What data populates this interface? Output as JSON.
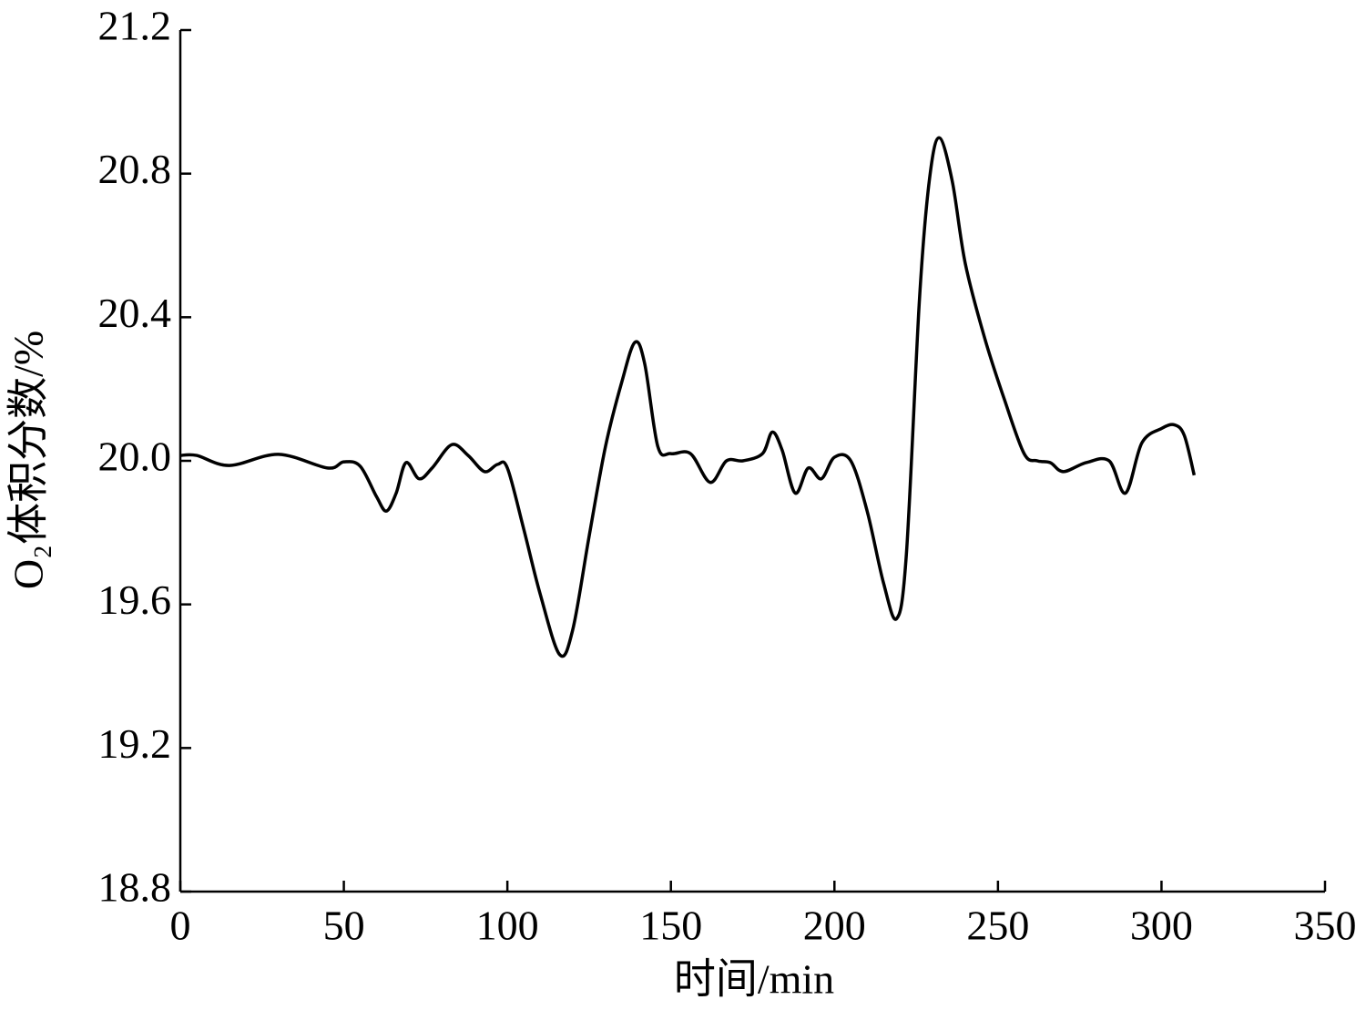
{
  "chart_data": {
    "type": "line",
    "x_label": "时间/min",
    "y_label": "O₂体积分数/%",
    "x": [
      0,
      5,
      15,
      30,
      45,
      50,
      55,
      60,
      63,
      66,
      69,
      73,
      77,
      83,
      88,
      93,
      97,
      100,
      105,
      110,
      116,
      120,
      125,
      130,
      135,
      139,
      142,
      146,
      150,
      156,
      162,
      167,
      172,
      178,
      181,
      184,
      188,
      192,
      196,
      200,
      205,
      210,
      215,
      219,
      222,
      226,
      229,
      232,
      236,
      240,
      246,
      252,
      258,
      262,
      266,
      270,
      277,
      284,
      289,
      294,
      300,
      304,
      307,
      310
    ],
    "series": [
      {
        "color": "#000000",
        "values": [
          20.015,
          20.015,
          19.987,
          20.018,
          19.98,
          19.997,
          19.985,
          19.9,
          19.86,
          19.91,
          19.995,
          19.95,
          19.98,
          20.045,
          20.015,
          19.97,
          19.99,
          19.98,
          19.81,
          19.63,
          19.46,
          19.53,
          19.79,
          20.04,
          20.22,
          20.33,
          20.27,
          20.04,
          20.02,
          20.02,
          19.94,
          20.0,
          20.0,
          20.02,
          20.08,
          20.03,
          19.91,
          19.98,
          19.95,
          20.01,
          20.0,
          19.86,
          19.66,
          19.56,
          19.74,
          20.45,
          20.78,
          20.9,
          20.78,
          20.55,
          20.34,
          20.17,
          20.02,
          20.0,
          19.995,
          19.97,
          19.995,
          20.0,
          19.91,
          20.05,
          20.09,
          20.1,
          20.07,
          19.96
        ]
      }
    ],
    "xlim": [
      0,
      350
    ],
    "xticks": [
      0,
      50,
      100,
      150,
      200,
      250,
      300,
      350
    ],
    "ylim": [
      18.8,
      21.2
    ],
    "yticks": [
      18.8,
      19.2,
      19.6,
      {
        "value": 20,
        "label": "20.0"
      },
      20.4,
      20.8,
      21.2
    ],
    "grid": false
  }
}
